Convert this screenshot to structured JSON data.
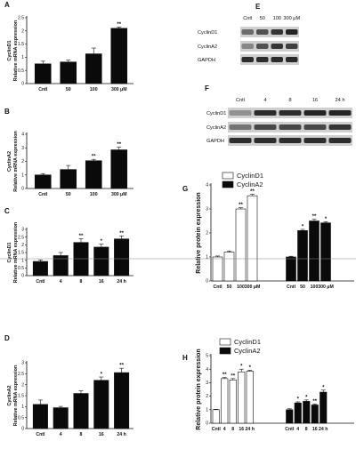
{
  "panels": [
    {
      "id": "A",
      "letter": "A",
      "type": "bar",
      "ylabel": [
        "CyclinD1",
        "Relative mRNA expression"
      ],
      "categories": [
        "Cntl",
        "50",
        "100",
        "300 μM"
      ],
      "values": [
        0.75,
        0.82,
        1.13,
        2.1
      ],
      "errors": [
        0.1,
        0.07,
        0.22,
        0.05
      ],
      "sig": [
        "",
        "",
        "",
        "**"
      ],
      "ylim": [
        0,
        2.5
      ],
      "ticks": [
        0,
        0.5,
        1,
        1.5,
        2,
        2.5
      ]
    },
    {
      "id": "B",
      "letter": "B",
      "type": "bar",
      "ylabel": [
        "CyclinA2",
        "Relative mRNA expression"
      ],
      "categories": [
        "Cntl",
        "50",
        "100",
        "300 μM"
      ],
      "values": [
        1.0,
        1.4,
        2.05,
        2.85
      ],
      "errors": [
        0.1,
        0.3,
        0.1,
        0.2
      ],
      "sig": [
        "",
        "",
        "**",
        "**"
      ],
      "ylim": [
        0,
        4
      ],
      "ticks": [
        0,
        1,
        2,
        3,
        4
      ]
    },
    {
      "id": "C",
      "letter": "C",
      "type": "bar",
      "ylabel": [
        "CyclinD1",
        "Relative mRNA expression"
      ],
      "categories": [
        "Cntl",
        "4",
        "8",
        "16",
        "24 h"
      ],
      "values": [
        0.92,
        1.3,
        2.15,
        1.85,
        2.38
      ],
      "errors": [
        0.1,
        0.2,
        0.25,
        0.2,
        0.2
      ],
      "sig": [
        "",
        "",
        "**",
        "*",
        "**"
      ],
      "ylim": [
        0,
        3
      ],
      "ticks": [
        0,
        0.5,
        1,
        1.5,
        2,
        2.5,
        3
      ]
    },
    {
      "id": "D",
      "letter": "D",
      "type": "bar",
      "ylabel": [
        "CyclinA2",
        "Relative mRNA expression"
      ],
      "categories": [
        "Cntl",
        "4",
        "8",
        "16",
        "24 h"
      ],
      "values": [
        1.1,
        0.95,
        1.6,
        2.2,
        2.55
      ],
      "errors": [
        0.2,
        0.06,
        0.12,
        0.15,
        0.2
      ],
      "sig": [
        "",
        "",
        "",
        "*",
        "**"
      ],
      "ylim": [
        0,
        3
      ],
      "ticks": [
        0,
        0.5,
        1,
        1.5,
        2,
        2.5,
        3
      ]
    },
    {
      "id": "G",
      "letter": "G",
      "type": "grouped-bar",
      "ylabel": [
        "Relative protein expression"
      ],
      "categories": [
        "Cntl",
        "50",
        "100",
        "300 μM",
        "Cntl",
        "50",
        "100",
        "300 μM"
      ],
      "series": [
        {
          "name": "CyclinD1",
          "values": [
            1.0,
            1.2,
            3.0,
            3.55
          ]
        },
        {
          "name": "CyclinA2",
          "values": [
            1.0,
            2.1,
            2.5,
            2.42
          ]
        }
      ],
      "errors": [
        [
          0.04,
          0.05,
          0.05,
          0.06
        ],
        [
          0.03,
          0.05,
          0.07,
          0.05
        ]
      ],
      "sig": [
        [
          "",
          "",
          "**",
          "**"
        ],
        [
          "",
          "*",
          "**",
          "*"
        ]
      ],
      "ylim": [
        0,
        4
      ],
      "ticks": [
        0,
        1,
        2,
        3,
        4
      ]
    },
    {
      "id": "H",
      "letter": "H",
      "type": "grouped-bar",
      "ylabel": [
        "Relative protein expression"
      ],
      "categories": [
        "Cntl",
        "4",
        "8",
        "16",
        "24 h",
        "Cntl",
        "4",
        "8",
        "16",
        "24 h"
      ],
      "series": [
        {
          "name": "CyclinD1",
          "values": [
            1.0,
            3.3,
            3.2,
            3.8,
            3.85
          ]
        },
        {
          "name": "CyclinA2",
          "values": [
            1.0,
            1.5,
            1.62,
            1.35,
            2.3
          ]
        }
      ],
      "errors": [
        [
          0.03,
          0.08,
          0.1,
          0.2,
          0.07
        ],
        [
          0.07,
          0.08,
          0.1,
          0.08,
          0.15
        ]
      ],
      "sig": [
        [
          "",
          "**",
          "**",
          "*",
          "*"
        ],
        [
          "",
          "*",
          "*",
          "**",
          "*"
        ]
      ],
      "ylim": [
        0,
        5
      ],
      "ticks": [
        0,
        1,
        2,
        3,
        4,
        5
      ]
    }
  ],
  "blots": [
    {
      "id": "E",
      "letter": "E",
      "lanes": [
        "Cntl",
        "50",
        "100",
        "300 μM"
      ],
      "rows": [
        "CyclinD1",
        "CyclinA2",
        "GAPDH"
      ],
      "intensity": [
        [
          0.55,
          0.7,
          0.85,
          0.95
        ],
        [
          0.4,
          0.7,
          0.85,
          0.8
        ],
        [
          0.9,
          0.9,
          0.9,
          0.9
        ]
      ]
    },
    {
      "id": "F",
      "letter": "F",
      "lanes": [
        "Cntl",
        "4",
        "8",
        "16",
        "24 h"
      ],
      "rows": [
        "CyclinD1",
        "CyclinA2",
        "GAPDH"
      ],
      "intensity": [
        [
          0.35,
          0.9,
          0.9,
          0.95,
          0.95
        ],
        [
          0.5,
          0.75,
          0.75,
          0.75,
          0.85
        ],
        [
          0.9,
          0.9,
          0.9,
          0.9,
          0.9
        ]
      ]
    }
  ],
  "colors": {
    "bar": "#0a0a0a",
    "bar_light": "#ffffff",
    "axis": "#111111",
    "band": "#1a1a1a",
    "blot_bg": "#cfcfcf",
    "guide": "#888888"
  }
}
